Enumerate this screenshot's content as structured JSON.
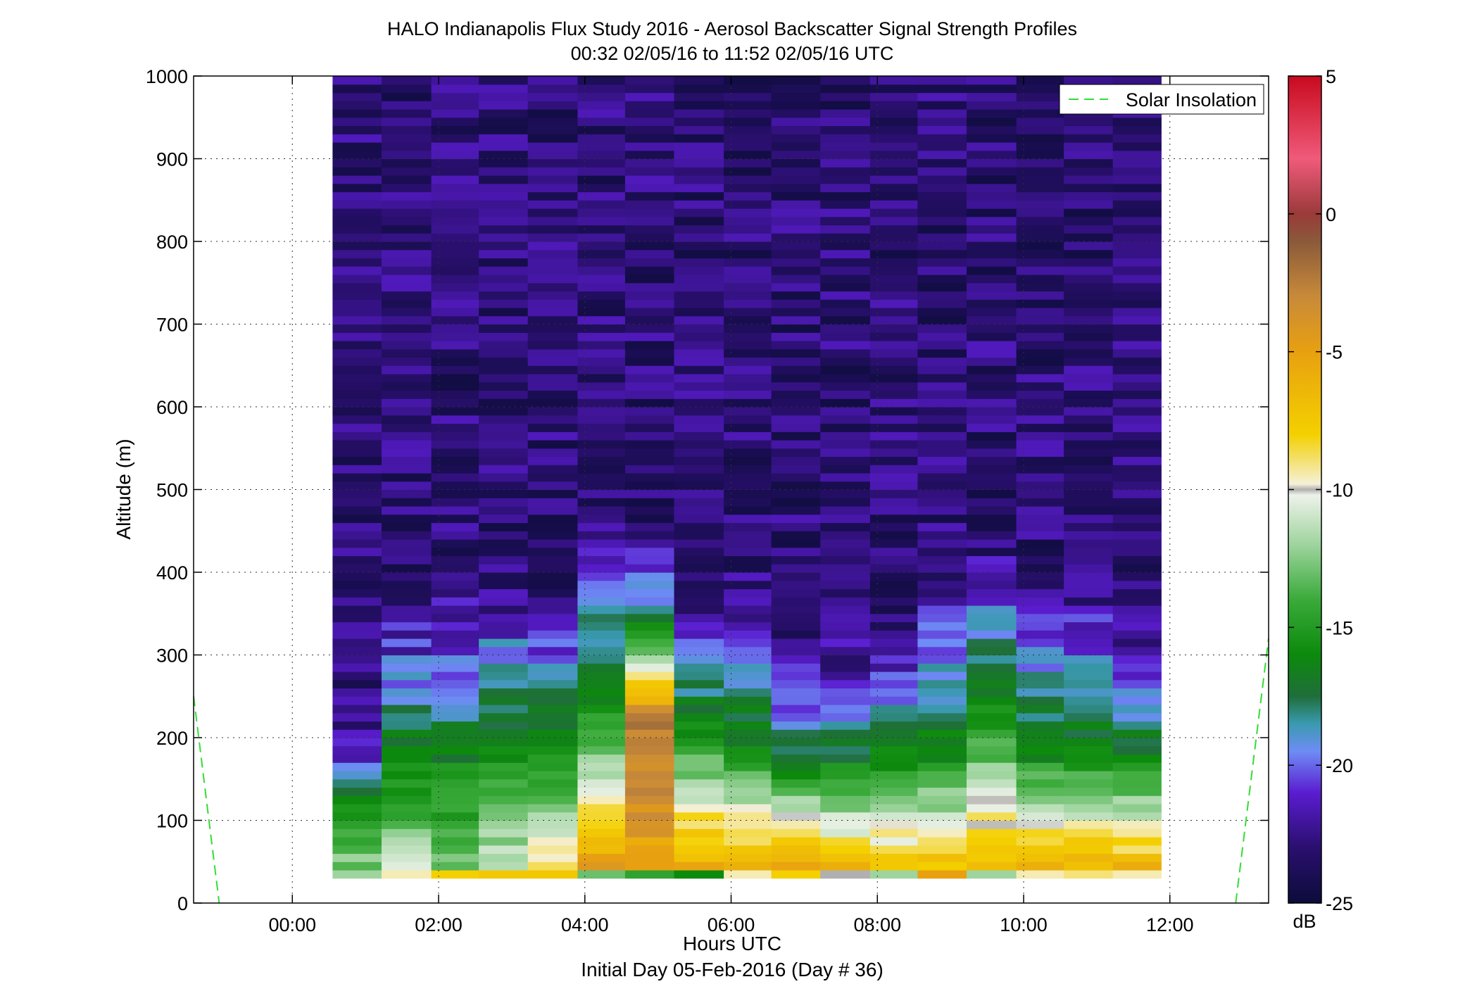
{
  "chart_data": {
    "type": "heatmap",
    "title": "HALO Indianapolis Flux Study 2016 - Aerosol Backscatter Signal Strength Profiles",
    "subtitle": "00:32 02/05/16 to 11:52 02/05/16  UTC",
    "xlabel": "Hours UTC",
    "xlabel2": "Initial Day 05-Feb-2016 (Day # 36)",
    "ylabel": "Altitude (m)",
    "xlim": [
      -1.35,
      13.35
    ],
    "ylim": [
      0,
      1000
    ],
    "x_ticks": [
      {
        "value": 0,
        "label": "00:00"
      },
      {
        "value": 2,
        "label": "02:00"
      },
      {
        "value": 4,
        "label": "04:00"
      },
      {
        "value": 6,
        "label": "06:00"
      },
      {
        "value": 8,
        "label": "08:00"
      },
      {
        "value": 10,
        "label": "10:00"
      },
      {
        "value": 12,
        "label": "12:00"
      }
    ],
    "y_ticks": [
      {
        "value": 0,
        "label": "0"
      },
      {
        "value": 100,
        "label": "100"
      },
      {
        "value": 200,
        "label": "200"
      },
      {
        "value": 300,
        "label": "300"
      },
      {
        "value": 400,
        "label": "400"
      },
      {
        "value": 500,
        "label": "500"
      },
      {
        "value": 600,
        "label": "600"
      },
      {
        "value": 700,
        "label": "700"
      },
      {
        "value": 800,
        "label": "800"
      },
      {
        "value": 900,
        "label": "900"
      },
      {
        "value": 1000,
        "label": "1000"
      }
    ],
    "grid": true,
    "colorbar": {
      "label": "dB",
      "range": [
        -25,
        5
      ],
      "ticks": [
        {
          "value": 5,
          "label": "5"
        },
        {
          "value": 0,
          "label": "0"
        },
        {
          "value": -5,
          "label": "-5"
        },
        {
          "value": -10,
          "label": "-10"
        },
        {
          "value": -15,
          "label": "-15"
        },
        {
          "value": -20,
          "label": "-20"
        },
        {
          "value": -25,
          "label": "-25"
        }
      ],
      "stops": [
        {
          "value": -25,
          "color": "#0c0c3a"
        },
        {
          "value": -23,
          "color": "#2a0f6e"
        },
        {
          "value": -21,
          "color": "#5a1ccf"
        },
        {
          "value": -19.5,
          "color": "#6e8cf5"
        },
        {
          "value": -18.5,
          "color": "#3a9ab0"
        },
        {
          "value": -17.5,
          "color": "#1f6e3a"
        },
        {
          "value": -16,
          "color": "#0c8a0c"
        },
        {
          "value": -14,
          "color": "#3aaa3a"
        },
        {
          "value": -12,
          "color": "#9ed49e"
        },
        {
          "value": -10.2,
          "color": "#eef2ea"
        },
        {
          "value": -10,
          "color": "#b0b0b0"
        },
        {
          "value": -9.8,
          "color": "#f5f0d8"
        },
        {
          "value": -8,
          "color": "#f4d000"
        },
        {
          "value": -5,
          "color": "#e8a010"
        },
        {
          "value": -3,
          "color": "#c88a3a"
        },
        {
          "value": -1,
          "color": "#8a5a3a"
        },
        {
          "value": 0,
          "color": "#9a3a3a"
        },
        {
          "value": 2,
          "color": "#f05a7a"
        },
        {
          "value": 5,
          "color": "#c80a1e"
        }
      ]
    },
    "legend": {
      "position": "top-right",
      "entries": [
        {
          "name": "Solar Insolation",
          "color": "#33dd33",
          "style": "dashed"
        }
      ]
    },
    "solar_insolation": [
      {
        "x": [
          -1.35,
          -1.0
        ],
        "y": [
          250,
          0
        ]
      },
      {
        "x": [
          12.9,
          13.35
        ],
        "y": [
          0,
          320
        ]
      }
    ],
    "heatmap": {
      "altitude_min": 30,
      "altitude_max": 1000,
      "altitude_step": 10,
      "columns": [
        {
          "x_start": 0.55,
          "x_end": 1.22,
          "surface_db": -12,
          "aerosol_top": 170,
          "top_db": -21,
          "mid_db": -15.5,
          "bottom_db": -12
        },
        {
          "x_start": 1.22,
          "x_end": 1.9,
          "surface_db": -9.5,
          "aerosol_top": 280,
          "top_db": -20,
          "mid_db": -16,
          "bottom_db": -11
        },
        {
          "x_start": 1.9,
          "x_end": 2.55,
          "surface_db": -8,
          "aerosol_top": 300,
          "top_db": -20.5,
          "mid_db": -16.5,
          "bottom_db": -12.5
        },
        {
          "x_start": 2.55,
          "x_end": 3.22,
          "surface_db": -7.5,
          "aerosol_top": 300,
          "top_db": -19.5,
          "mid_db": -16,
          "bottom_db": -10.5
        },
        {
          "x_start": 3.22,
          "x_end": 3.9,
          "surface_db": -7.5,
          "aerosol_top": 300,
          "top_db": -20,
          "mid_db": -16,
          "bottom_db": -7.5
        },
        {
          "x_start": 3.9,
          "x_end": 4.55,
          "surface_db": -13,
          "aerosol_top": 400,
          "top_db": -20,
          "mid_db": -16,
          "bottom_db": -4.5
        },
        {
          "x_start": 4.55,
          "x_end": 5.22,
          "surface_db": -14.5,
          "aerosol_top": 360,
          "top_db": -19.5,
          "mid_db": -2,
          "bottom_db": -5.5
        },
        {
          "x_start": 5.22,
          "x_end": 5.9,
          "surface_db": -16,
          "aerosol_top": 330,
          "top_db": -21.5,
          "mid_db": -15,
          "bottom_db": -5
        },
        {
          "x_start": 5.9,
          "x_end": 6.55,
          "surface_db": -9.5,
          "aerosol_top": 320,
          "top_db": -20.5,
          "mid_db": -16,
          "bottom_db": -5
        },
        {
          "x_start": 6.55,
          "x_end": 7.22,
          "surface_db": -8,
          "aerosol_top": 260,
          "top_db": -21.5,
          "mid_db": -15.5,
          "bottom_db": -5
        },
        {
          "x_start": 7.22,
          "x_end": 7.9,
          "surface_db": -10,
          "aerosol_top": 265,
          "top_db": -21.5,
          "mid_db": -16,
          "bottom_db": -6
        },
        {
          "x_start": 7.9,
          "x_end": 8.55,
          "surface_db": -12,
          "aerosol_top": 275,
          "top_db": -21,
          "mid_db": -16,
          "bottom_db": -6.5
        },
        {
          "x_start": 8.55,
          "x_end": 9.22,
          "surface_db": -5,
          "aerosol_top": 315,
          "top_db": -20.5,
          "mid_db": -16.5,
          "bottom_db": -6.5
        },
        {
          "x_start": 9.22,
          "x_end": 9.9,
          "surface_db": -12,
          "aerosol_top": 350,
          "top_db": -20,
          "mid_db": -15,
          "bottom_db": -6
        },
        {
          "x_start": 9.9,
          "x_end": 10.55,
          "surface_db": -9.5,
          "aerosol_top": 290,
          "top_db": -19.5,
          "mid_db": -16,
          "bottom_db": -5
        },
        {
          "x_start": 10.55,
          "x_end": 11.22,
          "surface_db": -9,
          "aerosol_top": 295,
          "top_db": -19.5,
          "mid_db": -16,
          "bottom_db": -5.5
        },
        {
          "x_start": 11.22,
          "x_end": 11.88,
          "surface_db": -9.5,
          "aerosol_top": 275,
          "top_db": -20.5,
          "mid_db": -16,
          "bottom_db": -6
        }
      ],
      "upper_db": -23
    }
  }
}
